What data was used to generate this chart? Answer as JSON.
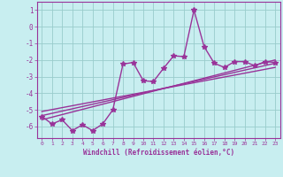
{
  "xlabel": "Windchill (Refroidissement éolien,°C)",
  "xlim": [
    -0.5,
    23.5
  ],
  "ylim": [
    -6.7,
    1.5
  ],
  "yticks": [
    1,
    0,
    -1,
    -2,
    -3,
    -4,
    -5,
    -6
  ],
  "xticks": [
    0,
    1,
    2,
    3,
    4,
    5,
    6,
    7,
    8,
    9,
    10,
    11,
    12,
    13,
    14,
    15,
    16,
    17,
    18,
    19,
    20,
    21,
    22,
    23
  ],
  "background_color": "#c8eef0",
  "grid_color": "#99cccc",
  "line_color": "#993399",
  "line_width": 1.0,
  "marker": "*",
  "marker_size": 4,
  "series": [
    [
      0,
      -5.4
    ],
    [
      1,
      -5.85
    ],
    [
      2,
      -5.6
    ],
    [
      3,
      -6.25
    ],
    [
      4,
      -5.9
    ],
    [
      5,
      -6.25
    ],
    [
      6,
      -5.85
    ],
    [
      7,
      -5.0
    ],
    [
      8,
      -2.25
    ],
    [
      9,
      -2.15
    ],
    [
      10,
      -3.25
    ],
    [
      11,
      -3.3
    ],
    [
      12,
      -2.5
    ],
    [
      13,
      -1.75
    ],
    [
      14,
      -1.8
    ],
    [
      15,
      1.0
    ],
    [
      16,
      -1.2
    ],
    [
      17,
      -2.2
    ],
    [
      18,
      -2.45
    ],
    [
      19,
      -2.1
    ],
    [
      20,
      -2.1
    ],
    [
      21,
      -2.35
    ],
    [
      22,
      -2.1
    ],
    [
      23,
      -2.15
    ]
  ],
  "trend_lines": [
    {
      "x": [
        0,
        23
      ],
      "y": [
        -5.6,
        -2.0
      ]
    },
    {
      "x": [
        0,
        23
      ],
      "y": [
        -5.35,
        -2.2
      ]
    },
    {
      "x": [
        0,
        23
      ],
      "y": [
        -5.1,
        -2.45
      ]
    }
  ]
}
